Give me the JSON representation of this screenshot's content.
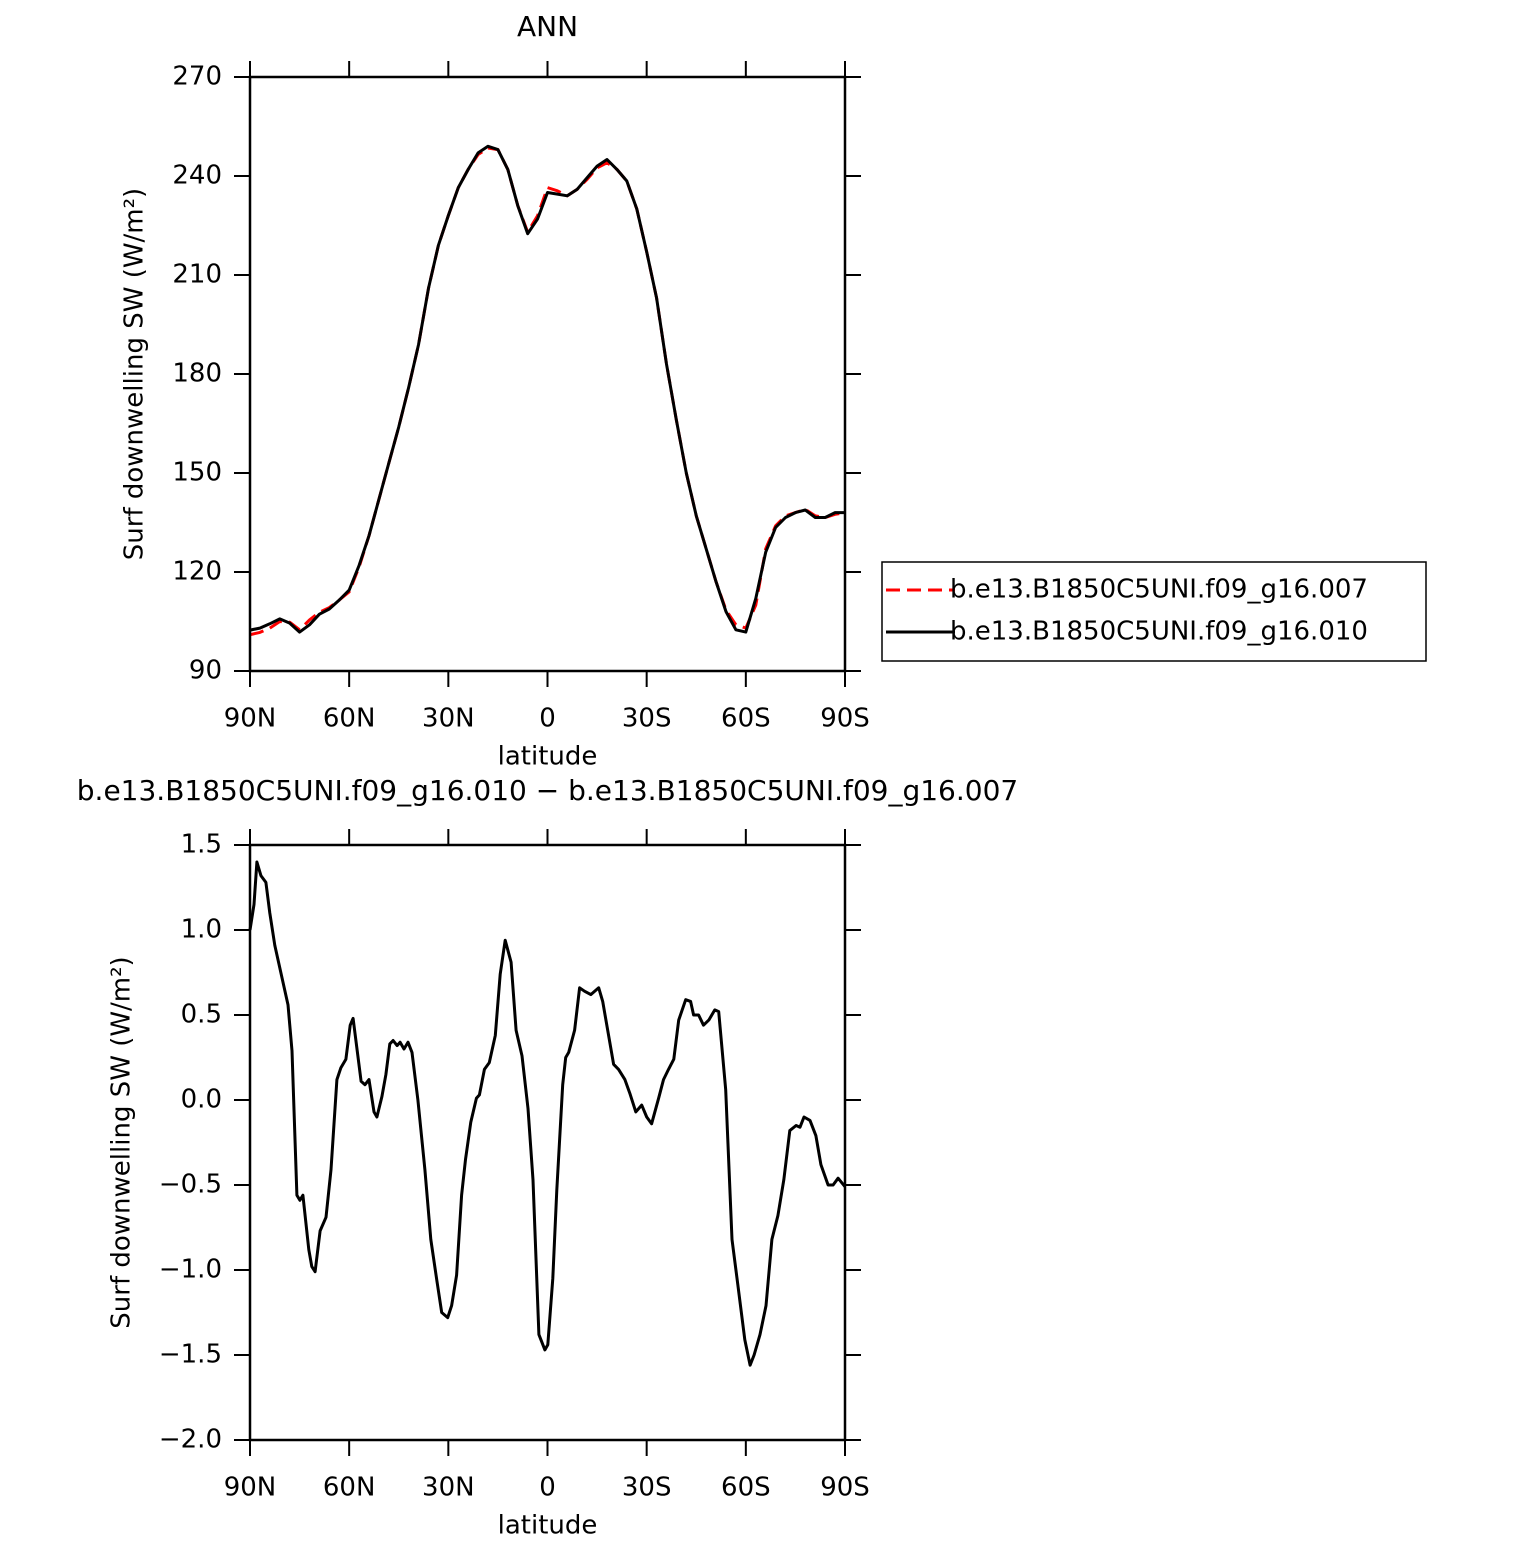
{
  "chart_data": [
    {
      "type": "line",
      "title": "ANN",
      "xlabel": "latitude",
      "ylabel": "Surf downwelling SW (W/m²)",
      "x": [
        90,
        87,
        84,
        81,
        78,
        75,
        72,
        69,
        66,
        63,
        60,
        57,
        54,
        51,
        48,
        45,
        42,
        39,
        36,
        33,
        30,
        27,
        24,
        21,
        18,
        15,
        12,
        9,
        6,
        3,
        0,
        -3,
        -6,
        -9,
        -12,
        -15,
        -18,
        -21,
        -24,
        -27,
        -30,
        -33,
        -36,
        -39,
        -42,
        -45,
        -48,
        -51,
        -54,
        -57,
        -60,
        -63,
        -66,
        -69,
        -72,
        -75,
        -78,
        -81,
        -84,
        -87,
        -90
      ],
      "series": [
        {
          "name": "b.e13.B1850C5UNI.f09_g16.007",
          "color": "#ff0000",
          "dash": true,
          "values": [
            101,
            101.7,
            103,
            105,
            104.8,
            102.5,
            105.5,
            107.8,
            109.2,
            111.5,
            114,
            121.5,
            131,
            142,
            153,
            164,
            176,
            189,
            206,
            219,
            228,
            236.5,
            242,
            246.5,
            248.5,
            248,
            242,
            231,
            223,
            228,
            236.5,
            235.5,
            234,
            236,
            239,
            242.5,
            244,
            242,
            238.5,
            230,
            217,
            203,
            183,
            166,
            150,
            137,
            127,
            117,
            108.5,
            104,
            103,
            110,
            127,
            134,
            137,
            138,
            139,
            137,
            136.5,
            137.5,
            138
          ]
        },
        {
          "name": "b.e13.B1850C5UNI.f09_g16.010",
          "color": "#000000",
          "dash": false,
          "values": [
            102.4,
            103,
            104.3,
            105.8,
            104.5,
            101.8,
            104,
            107.2,
            108.8,
            111.5,
            114.5,
            122,
            131,
            142,
            153,
            164,
            176,
            189,
            206,
            219,
            228,
            236.5,
            242,
            247,
            249,
            248,
            242,
            231,
            222.5,
            227,
            235,
            234.5,
            234,
            236,
            239.5,
            243,
            245,
            242,
            238.5,
            230,
            217,
            203,
            183,
            166,
            150,
            137,
            127,
            117,
            108,
            102.5,
            101.8,
            112,
            126,
            133.5,
            136.5,
            138,
            138.8,
            136.5,
            136.5,
            138,
            138
          ]
        }
      ],
      "xlim": [
        90,
        -90
      ],
      "xticks": [
        {
          "value": 90,
          "label": "90N"
        },
        {
          "value": 60,
          "label": "60N"
        },
        {
          "value": 30,
          "label": "30N"
        },
        0,
        {
          "value": -30,
          "label": "30S"
        },
        {
          "value": -60,
          "label": "60S"
        },
        {
          "value": -90,
          "label": "90S"
        }
      ],
      "ylim": [
        90,
        270
      ],
      "yticks": [
        90,
        120,
        150,
        180,
        210,
        240,
        270
      ],
      "legend": "outside-right"
    },
    {
      "type": "line",
      "title": "b.e13.B1850C5UNI.f09_g16.010 − b.e13.B1850C5UNI.f09_g16.007",
      "xlabel": "latitude",
      "ylabel": "Surf downwelling SW (W/m²)",
      "x": [
        90.0,
        88.8,
        87.9,
        86.7,
        85.2,
        84.0,
        82.5,
        78.5,
        77.3,
        75.8,
        74.9,
        74.0,
        72.2,
        71.3,
        70.3,
        68.8,
        67.0,
        65.5,
        63.7,
        62.5,
        61.0,
        59.7,
        58.8,
        56.4,
        55.2,
        54.0,
        52.5,
        51.6,
        50.1,
        48.9,
        47.7,
        46.7,
        45.5,
        44.6,
        43.4,
        42.2,
        41.0,
        39.2,
        37.1,
        35.3,
        33.5,
        32.0,
        30.2,
        29.0,
        27.5,
        26.0,
        24.8,
        23.2,
        21.5,
        20.6,
        19.1,
        17.6,
        15.8,
        14.3,
        12.8,
        11.0,
        9.5,
        7.7,
        5.9,
        4.4,
        2.6,
        0.8,
        -0.1,
        -1.6,
        -2.8,
        -4.6,
        -5.5,
        -6.4,
        -8.2,
        -9.7,
        -11.2,
        -13.1,
        -15.5,
        -16.7,
        -18.2,
        -20.0,
        -21.5,
        -23.4,
        -24.9,
        -26.7,
        -28.5,
        -30.0,
        -31.5,
        -33.6,
        -35.1,
        -36.6,
        -38.2,
        -39.7,
        -41.8,
        -43.3,
        -44.2,
        -45.7,
        -47.2,
        -48.8,
        -50.6,
        -51.8,
        -53.9,
        -55.8,
        -57.6,
        -59.7,
        -61.3,
        -62.5,
        -64.3,
        -66.1,
        -67.9,
        -69.7,
        -71.5,
        -73.3,
        -75.2,
        -76.4,
        -77.6,
        -79.4,
        -81.2,
        -82.7,
        -84.9,
        -86.4,
        -87.9,
        -90.0
      ],
      "values": [
        1.0,
        1.15,
        1.4,
        1.32,
        1.28,
        1.1,
        0.91,
        0.56,
        0.29,
        -0.56,
        -0.59,
        -0.56,
        -0.88,
        -0.98,
        -1.01,
        -0.77,
        -0.69,
        -0.41,
        0.12,
        0.19,
        0.24,
        0.44,
        0.48,
        0.11,
        0.09,
        0.12,
        -0.07,
        -0.1,
        0.02,
        0.15,
        0.33,
        0.35,
        0.32,
        0.34,
        0.3,
        0.34,
        0.28,
        0.0,
        -0.41,
        -0.82,
        -1.06,
        -1.25,
        -1.28,
        -1.21,
        -1.03,
        -0.56,
        -0.35,
        -0.13,
        0.01,
        0.03,
        0.18,
        0.22,
        0.38,
        0.74,
        0.94,
        0.81,
        0.41,
        0.26,
        -0.05,
        -0.47,
        -1.38,
        -1.47,
        -1.44,
        -1.05,
        -0.53,
        0.09,
        0.25,
        0.28,
        0.41,
        0.66,
        0.64,
        0.62,
        0.66,
        0.58,
        0.41,
        0.21,
        0.18,
        0.12,
        0.04,
        -0.07,
        -0.03,
        -0.1,
        -0.14,
        0.01,
        0.12,
        0.18,
        0.24,
        0.47,
        0.59,
        0.58,
        0.5,
        0.5,
        0.44,
        0.47,
        0.53,
        0.52,
        0.06,
        -0.82,
        -1.09,
        -1.41,
        -1.56,
        -1.5,
        -1.38,
        -1.21,
        -0.82,
        -0.68,
        -0.47,
        -0.18,
        -0.15,
        -0.16,
        -0.1,
        -0.12,
        -0.21,
        -0.38,
        -0.5,
        -0.5,
        -0.46,
        -0.51
      ],
      "color": "#000000",
      "xlim": [
        90,
        -90
      ],
      "xticks": [
        {
          "value": 90,
          "label": "90N"
        },
        {
          "value": 60,
          "label": "60N"
        },
        {
          "value": 30,
          "label": "30N"
        },
        0,
        {
          "value": -30,
          "label": "30S"
        },
        {
          "value": -60,
          "label": "60S"
        },
        {
          "value": -90,
          "label": "90S"
        }
      ],
      "ylim": [
        -2,
        1.5
      ],
      "yticks": [
        {
          "value": -2,
          "label": "−2.0"
        },
        {
          "value": -1.5,
          "label": "−1.5"
        },
        {
          "value": -1,
          "label": "−1.0"
        },
        {
          "value": -0.5,
          "label": "−0.5"
        },
        {
          "value": 0,
          "label": "0.0"
        },
        0.5,
        {
          "value": 1,
          "label": "1.0"
        },
        1.5
      ]
    }
  ]
}
